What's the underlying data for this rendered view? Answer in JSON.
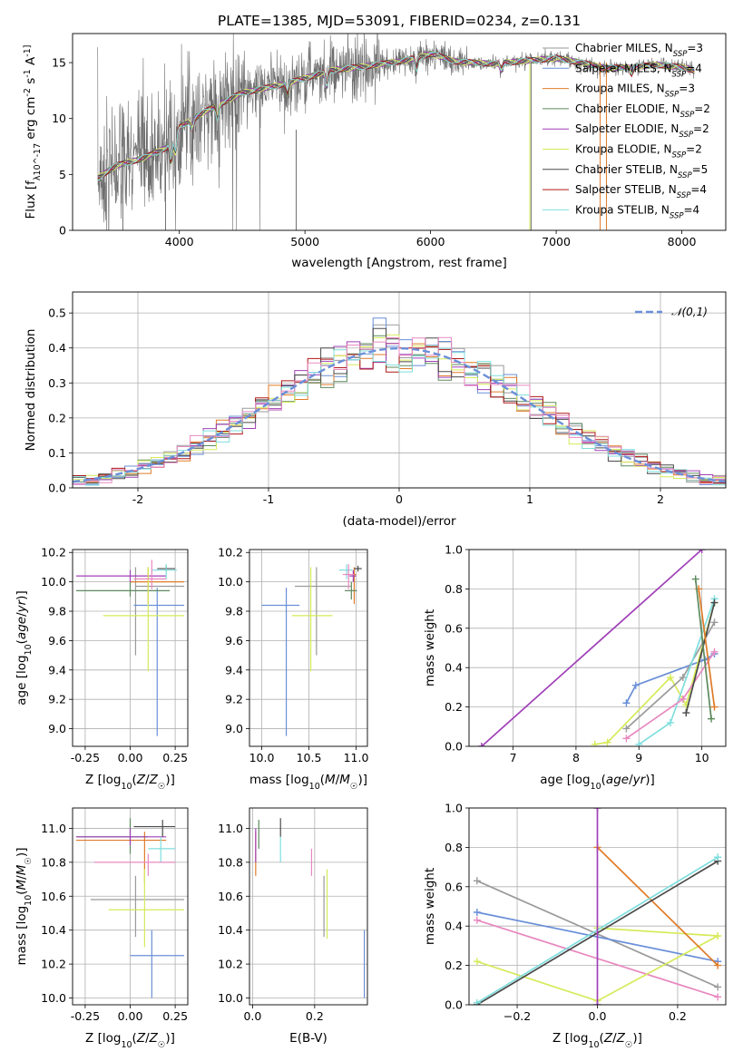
{
  "title": "PLATE=1385, MJD=53091, FIBERID=0234, z=0.131",
  "models": [
    {
      "label": "Chabrier MILES",
      "n": "3",
      "color": "#9a9a9a"
    },
    {
      "label": "Salpeter MILES",
      "n": "4",
      "color": "#6a8fd8"
    },
    {
      "label": "Kroupa MILES",
      "n": "3",
      "color": "#e07b28"
    },
    {
      "label": "Chabrier ELODIE",
      "n": "2",
      "color": "#5e8a5e"
    },
    {
      "label": "Salpeter ELODIE",
      "n": "2",
      "color": "#a040b8"
    },
    {
      "label": "Kroupa ELODIE",
      "n": "2",
      "color": "#d6ea5a"
    },
    {
      "label": "Chabrier STELIB",
      "n": "5",
      "color": "#4a4a4a"
    },
    {
      "label": "Salpeter STELIB",
      "n": "4",
      "color": "#b01818"
    },
    {
      "label": "Kroupa STELIB",
      "n": "4",
      "color": "#7fdede"
    }
  ],
  "extra_colors": {
    "pink": "#e888c0",
    "data": "#6e6e6e",
    "gauss": "#6a8fd8",
    "grid": "#b0b0b0"
  },
  "chart_data": [
    {
      "id": "spectrum",
      "type": "line",
      "xlabel": "wavelength [Angstrom, rest frame]",
      "ylabel": "Flux [f_λ10^-17 erg cm^-2 s^-1 A^-1]",
      "xlim": [
        3150,
        8350
      ],
      "ylim": [
        0,
        17.6
      ],
      "xticks": [
        4000,
        5000,
        6000,
        7000,
        8000
      ],
      "yticks": [
        0,
        5,
        10,
        15
      ],
      "grid": false,
      "legend": "top-right",
      "continuum": {
        "x": [
          3350,
          3500,
          3700,
          3900,
          4000,
          4200,
          4500,
          4800,
          5000,
          5200,
          5500,
          5800,
          6000,
          6200,
          6500,
          6800,
          7000,
          7200,
          7400,
          7600,
          7800,
          8000,
          8100
        ],
        "y": [
          4.7,
          5.8,
          6.4,
          7.4,
          9.2,
          10.6,
          12.3,
          13.0,
          13.6,
          14.3,
          14.7,
          15.2,
          15.8,
          15.1,
          14.9,
          15.2,
          15.4,
          15.0,
          14.5,
          14.6,
          14.8,
          14.6,
          14.3
        ]
      },
      "absorption_lines": [
        {
          "x": 3934,
          "depth": 2.0
        },
        {
          "x": 3969,
          "depth": 1.8
        },
        {
          "x": 4102,
          "depth": 0.8
        },
        {
          "x": 4304,
          "depth": 1.2
        },
        {
          "x": 4861,
          "depth": 0.9
        },
        {
          "x": 5175,
          "depth": 1.4
        },
        {
          "x": 5890,
          "depth": 1.1
        },
        {
          "x": 6563,
          "depth": 0.7
        },
        {
          "x": 7600,
          "depth": 0.6
        }
      ]
    },
    {
      "id": "residuals",
      "type": "histogram",
      "xlabel": "(data-model)/error",
      "ylabel": "Normed distribution",
      "xlim": [
        -2.5,
        2.5
      ],
      "ylim": [
        0,
        0.56
      ],
      "xticks": [
        -2,
        -1,
        0,
        1,
        2
      ],
      "yticks": [
        0.0,
        0.1,
        0.2,
        0.3,
        0.4,
        0.5
      ],
      "grid": true,
      "legend": "top-right",
      "gauss_label": "𝒩(0,1)"
    },
    {
      "id": "age-vs-Z",
      "type": "scatter",
      "xlabel": "Z [log10(Z/Z☉)]",
      "ylabel": "age  [log10(age/yr)]",
      "xlim": [
        -0.32,
        0.32
      ],
      "ylim": [
        8.88,
        10.22
      ],
      "xticks": [
        -0.25,
        0.0,
        0.25
      ],
      "yticks": [
        9.0,
        9.2,
        9.4,
        9.6,
        9.8,
        10.0,
        10.2
      ],
      "points": [
        {
          "c": 1,
          "x": 0.03,
          "y": 9.97,
          "xe": [
            0.03,
            0.3
          ],
          "ye": [
            9.5,
            10.1
          ]
        },
        {
          "c": 2,
          "x": 0.15,
          "y": 9.84,
          "xe": [
            0.02,
            0.3
          ],
          "ye": [
            8.95,
            9.96
          ]
        },
        {
          "c": 3,
          "x": 0.1,
          "y": 10.0,
          "xe": [
            0.0,
            0.3
          ],
          "ye": [
            9.85,
            10.1
          ]
        },
        {
          "c": 4,
          "x": 0.0,
          "y": 9.94,
          "xe": [
            -0.3,
            0.22
          ],
          "ye": [
            9.9,
            10.0
          ]
        },
        {
          "c": 5,
          "x": 0.0,
          "y": 10.04,
          "xe": [
            -0.3,
            0.2
          ],
          "ye": [
            10.0,
            10.08
          ]
        },
        {
          "c": 6,
          "x": 0.1,
          "y": 9.77,
          "xe": [
            -0.15,
            0.3
          ],
          "ye": [
            9.39,
            10.1
          ]
        },
        {
          "c": 7,
          "x": 0.2,
          "y": 10.09,
          "xe": [
            0.15,
            0.25
          ],
          "ye": [
            10.07,
            10.11
          ]
        },
        {
          "c": 8,
          "x": 0.2,
          "y": 10.08,
          "xe": [
            0.12,
            0.26
          ],
          "ye": [
            10.02,
            10.12
          ]
        },
        {
          "c": 9,
          "x": 0.12,
          "y": 10.02,
          "xe": [
            0.02,
            0.2
          ],
          "ye": [
            9.95,
            10.15
          ]
        }
      ]
    },
    {
      "id": "age-vs-mass",
      "type": "scatter",
      "xlabel": "mass [log10(M/M☉)]",
      "ylabel": "",
      "xlim": [
        9.87,
        11.12
      ],
      "ylim": [
        8.88,
        10.22
      ],
      "xticks": [
        10.0,
        10.5,
        11.0
      ],
      "yticks": [
        9.0,
        9.2,
        9.4,
        9.6,
        9.8,
        10.0,
        10.2
      ],
      "points": [
        {
          "c": 1,
          "x": 10.58,
          "y": 9.97,
          "xe": [
            10.35,
            10.95
          ],
          "ye": [
            9.5,
            10.1
          ]
        },
        {
          "c": 2,
          "x": 10.26,
          "y": 9.84,
          "xe": [
            10.0,
            10.4
          ],
          "ye": [
            8.95,
            9.96
          ]
        },
        {
          "c": 3,
          "x": 10.98,
          "y": 10.05,
          "xe": [
            10.96,
            11.0
          ],
          "ye": [
            9.85,
            10.1
          ]
        },
        {
          "c": 4,
          "x": 10.95,
          "y": 9.94,
          "xe": [
            10.88,
            11.01
          ],
          "ye": [
            9.88,
            10.0
          ]
        },
        {
          "c": 5,
          "x": 10.97,
          "y": 10.04,
          "xe": [
            10.93,
            11.0
          ],
          "ye": [
            10.0,
            10.08
          ]
        },
        {
          "c": 6,
          "x": 10.52,
          "y": 9.77,
          "xe": [
            10.32,
            10.75
          ],
          "ye": [
            9.39,
            10.1
          ]
        },
        {
          "c": 7,
          "x": 11.02,
          "y": 10.09,
          "xe": [
            10.98,
            11.06
          ],
          "ye": [
            10.07,
            10.11
          ]
        },
        {
          "c": 8,
          "x": 10.9,
          "y": 10.08,
          "xe": [
            10.82,
            10.96
          ],
          "ye": [
            10.02,
            10.12
          ]
        },
        {
          "c": 9,
          "x": 10.92,
          "y": 10.05,
          "xe": [
            10.86,
            10.98
          ],
          "ye": [
            9.95,
            10.12
          ]
        }
      ]
    },
    {
      "id": "mass-weight-vs-age",
      "type": "line",
      "xlabel": "age  [log10(age/yr)]",
      "ylabel": "mass weight",
      "xlim": [
        6.3,
        10.38
      ],
      "ylim": [
        0,
        1.0
      ],
      "xticks": [
        7,
        8,
        9,
        10
      ],
      "yticks": [
        0.0,
        0.2,
        0.4,
        0.6,
        0.8,
        1.0
      ],
      "grid": true,
      "series": [
        {
          "c": 5,
          "x": [
            6.5,
            10.0
          ],
          "y": [
            0.0,
            1.0
          ]
        },
        {
          "c": 2,
          "x": [
            8.8,
            8.95,
            10.05,
            10.2
          ],
          "y": [
            0.22,
            0.31,
            0.44,
            0.47
          ]
        },
        {
          "c": 6,
          "x": [
            8.3,
            8.5,
            9.5,
            9.75,
            10.2
          ],
          "y": [
            0.01,
            0.02,
            0.35,
            0.21,
            0.73
          ]
        },
        {
          "c": 1,
          "x": [
            8.8,
            9.7,
            10.2
          ],
          "y": [
            0.09,
            0.35,
            0.63
          ]
        },
        {
          "c": 8,
          "x": [
            9.0,
            9.5,
            10.2
          ],
          "y": [
            0.01,
            0.12,
            0.75
          ]
        },
        {
          "c": 9,
          "x": [
            8.8,
            9.7,
            10.2
          ],
          "y": [
            0.04,
            0.24,
            0.48
          ]
        },
        {
          "c": 7,
          "x": [
            9.75,
            10.2
          ],
          "y": [
            0.17,
            0.73
          ]
        },
        {
          "c": 3,
          "x": [
            9.95,
            10.2
          ],
          "y": [
            0.8,
            0.2
          ]
        },
        {
          "c": 4,
          "x": [
            9.9,
            10.15
          ],
          "y": [
            0.85,
            0.14
          ]
        }
      ]
    },
    {
      "id": "mass-vs-Z",
      "type": "scatter",
      "xlabel": "Z [log10(Z/Z☉)]",
      "ylabel": "mass [log10(M/M☉)]",
      "xlim": [
        -0.32,
        0.32
      ],
      "ylim": [
        9.96,
        11.12
      ],
      "xticks": [
        -0.25,
        0.0,
        0.25
      ],
      "yticks": [
        10.0,
        10.2,
        10.4,
        10.6,
        10.8,
        11.0
      ],
      "points": [
        {
          "c": 1,
          "x": 0.03,
          "y": 10.58,
          "xe": [
            -0.22,
            0.3
          ],
          "ye": [
            10.36,
            10.72
          ]
        },
        {
          "c": 2,
          "x": 0.12,
          "y": 10.25,
          "xe": [
            0.0,
            0.3
          ],
          "ye": [
            10.0,
            10.4
          ]
        },
        {
          "c": 3,
          "x": 0.08,
          "y": 10.93,
          "xe": [
            -0.3,
            0.2
          ],
          "ye": [
            10.68,
            10.98
          ]
        },
        {
          "c": 4,
          "x": 0.0,
          "y": 10.95,
          "xe": [
            -0.3,
            0.1
          ],
          "ye": [
            10.85,
            11.06
          ]
        },
        {
          "c": 5,
          "x": 0.0,
          "y": 10.95,
          "xe": [
            -0.3,
            0.2
          ],
          "ye": [
            10.9,
            11.0
          ]
        },
        {
          "c": 6,
          "x": 0.08,
          "y": 10.52,
          "xe": [
            -0.12,
            0.3
          ],
          "ye": [
            10.3,
            10.76
          ]
        },
        {
          "c": 7,
          "x": 0.18,
          "y": 11.01,
          "xe": [
            0.02,
            0.25
          ],
          "ye": [
            10.95,
            11.05
          ]
        },
        {
          "c": 8,
          "x": 0.17,
          "y": 10.88,
          "xe": [
            0.1,
            0.25
          ],
          "ye": [
            10.8,
            10.95
          ]
        },
        {
          "c": 9,
          "x": 0.1,
          "y": 10.8,
          "xe": [
            -0.2,
            0.25
          ],
          "ye": [
            10.72,
            10.85
          ]
        }
      ]
    },
    {
      "id": "mass-vs-EBV",
      "type": "scatter",
      "xlabel": "E(B-V)",
      "ylabel": "",
      "xlim": [
        -0.01,
        0.37
      ],
      "ylim": [
        9.96,
        11.12
      ],
      "xticks": [
        0.0,
        0.2
      ],
      "yticks": [
        10.0,
        10.2,
        10.4,
        10.6,
        10.8,
        11.0
      ],
      "points": [
        {
          "c": 1,
          "x": 0.23,
          "y": 10.5,
          "ye": [
            10.36,
            10.72
          ]
        },
        {
          "c": 2,
          "x": 0.36,
          "y": 10.2,
          "ye": [
            10.0,
            10.4
          ]
        },
        {
          "c": 3,
          "x": 0.01,
          "y": 10.85,
          "ye": [
            10.72,
            10.98
          ]
        },
        {
          "c": 4,
          "x": 0.02,
          "y": 10.95,
          "ye": [
            10.88,
            11.05
          ]
        },
        {
          "c": 5,
          "x": 0.01,
          "y": 10.9,
          "ye": [
            10.8,
            11.0
          ]
        },
        {
          "c": 6,
          "x": 0.24,
          "y": 10.55,
          "ye": [
            10.35,
            10.76
          ]
        },
        {
          "c": 7,
          "x": 0.09,
          "y": 11.0,
          "ye": [
            10.95,
            11.06
          ]
        },
        {
          "c": 8,
          "x": 0.09,
          "y": 10.88,
          "ye": [
            10.8,
            10.95
          ]
        },
        {
          "c": 9,
          "x": 0.19,
          "y": 10.8,
          "ye": [
            10.72,
            10.88
          ]
        }
      ]
    },
    {
      "id": "mass-weight-vs-Z",
      "type": "line",
      "xlabel": "Z [log10(Z/Z☉)]",
      "ylabel": "mass weight",
      "xlim": [
        -0.32,
        0.32
      ],
      "ylim": [
        0,
        1.0
      ],
      "xticks": [
        -0.2,
        0.0,
        0.2
      ],
      "yticks": [
        0.0,
        0.2,
        0.4,
        0.6,
        0.8,
        1.0
      ],
      "grid": true,
      "series": [
        {
          "c": 1,
          "x": [
            -0.3,
            0.3
          ],
          "y": [
            0.63,
            0.09
          ]
        },
        {
          "c": 2,
          "x": [
            -0.3,
            0.3
          ],
          "y": [
            0.47,
            0.22
          ]
        },
        {
          "c": 9,
          "x": [
            -0.3,
            0.3
          ],
          "y": [
            0.43,
            0.04
          ]
        },
        {
          "c": 6,
          "x": [
            -0.3,
            0.0,
            0.3
          ],
          "y": [
            0.22,
            0.02,
            0.35
          ]
        },
        {
          "c": 6,
          "x": [
            0.0,
            0.3
          ],
          "y": [
            0.39,
            0.35
          ]
        },
        {
          "c": 3,
          "x": [
            0.0,
            0.3
          ],
          "y": [
            0.8,
            0.2
          ]
        },
        {
          "c": 7,
          "x": [
            -0.3,
            0.3
          ],
          "y": [
            0.0,
            0.73
          ]
        },
        {
          "c": 8,
          "x": [
            -0.3,
            0.3
          ],
          "y": [
            0.01,
            0.75
          ]
        },
        {
          "c": 5,
          "x": [
            0.0,
            0.0
          ],
          "y": [
            0.0,
            1.0
          ]
        }
      ]
    }
  ]
}
